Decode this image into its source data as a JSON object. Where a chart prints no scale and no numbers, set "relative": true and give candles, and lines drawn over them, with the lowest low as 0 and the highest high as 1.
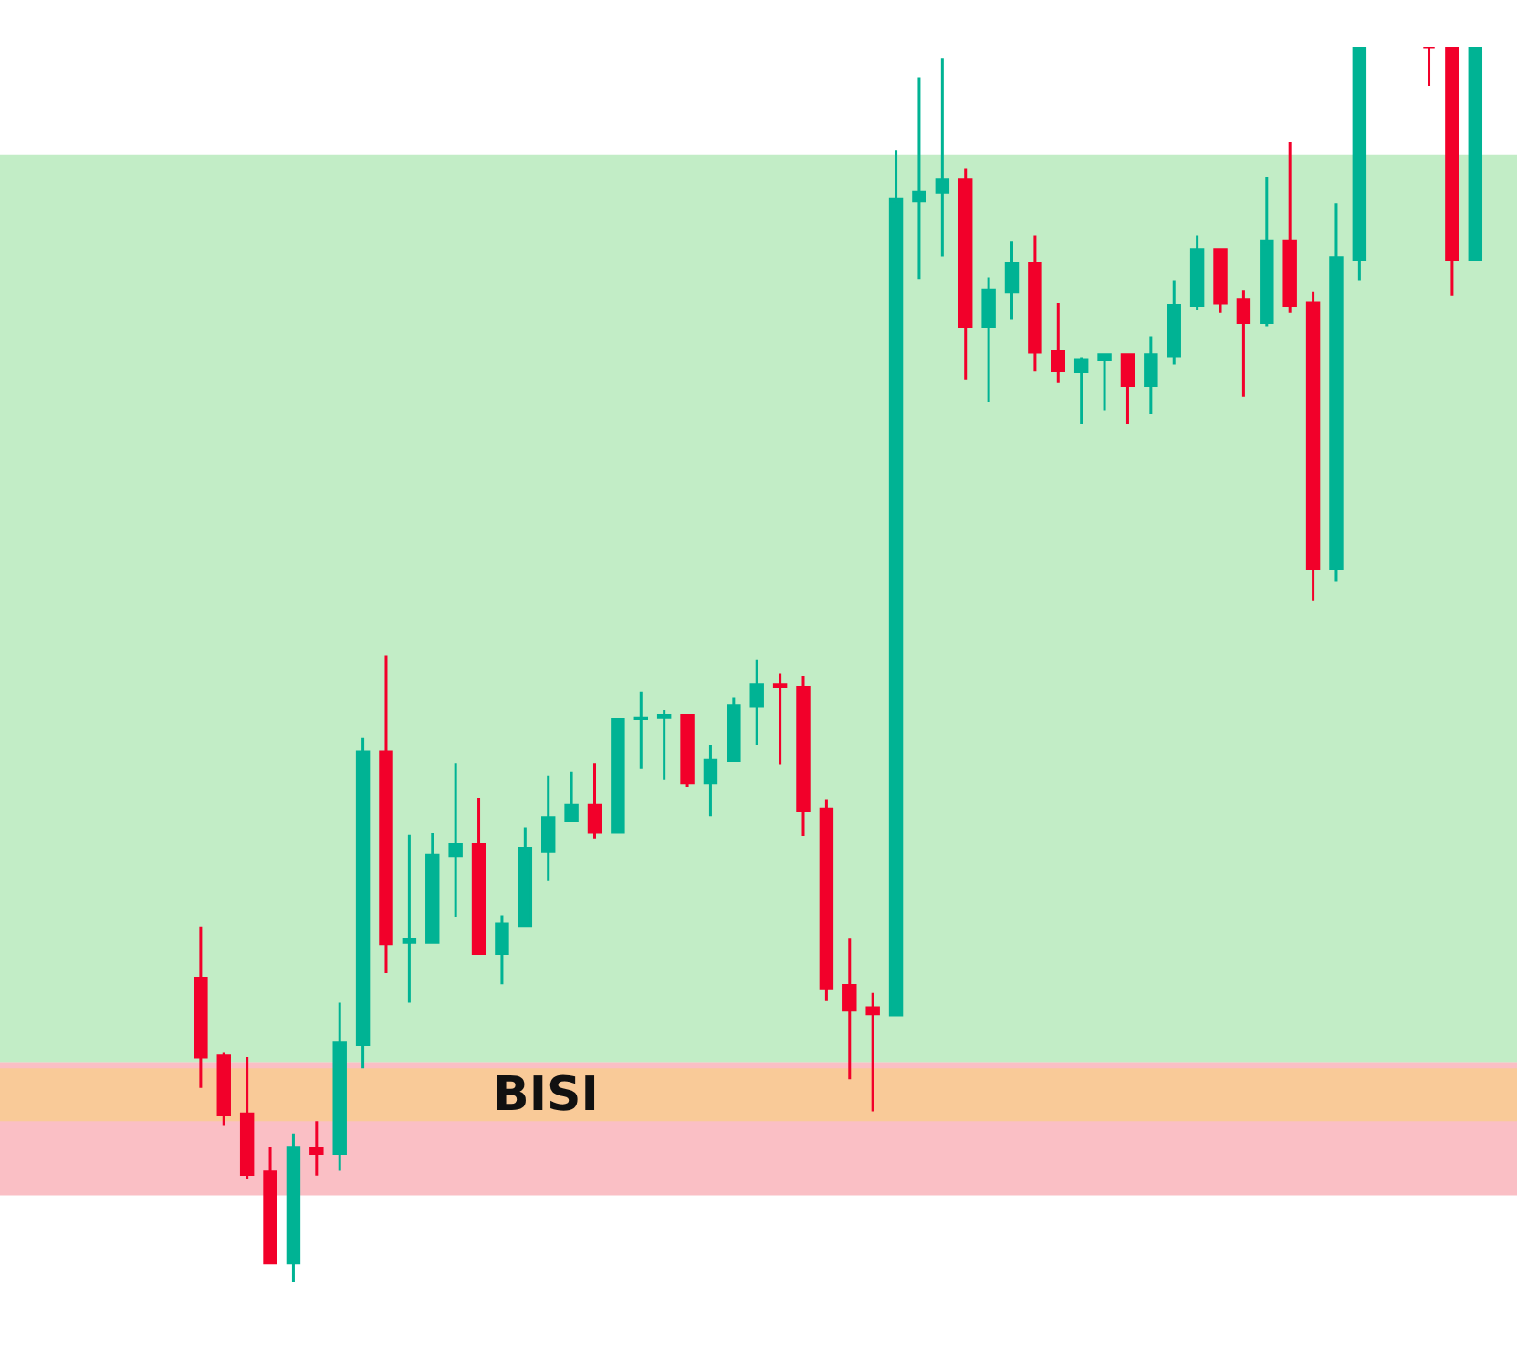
{
  "chart_data": {
    "type": "candlestick",
    "relative": true,
    "categories": [
      null,
      null,
      null,
      null,
      null,
      null,
      null,
      null,
      null,
      null,
      null,
      null,
      null,
      null,
      null,
      null,
      null,
      null,
      null,
      null,
      null,
      null,
      null,
      null,
      null,
      null,
      null,
      null,
      null,
      null,
      null,
      null,
      null,
      null,
      null,
      null,
      null,
      null,
      null,
      null,
      null,
      null,
      null,
      null,
      null,
      null,
      null,
      null,
      null,
      null,
      null,
      null,
      null,
      null,
      null,
      null
    ],
    "ohlc": [
      [
        0.246,
        0.288,
        0.157,
        0.182
      ],
      [
        0.183,
        0.186,
        0.127,
        0.135
      ],
      [
        0.136,
        0.182,
        0.083,
        0.087
      ],
      [
        0.089,
        0.109,
        0.015,
        0.015
      ],
      [
        0.015,
        0.12,
        0,
        0.109
      ],
      [
        0.108,
        0.13,
        0.086,
        0.104
      ],
      [
        0.104,
        0.226,
        0.09,
        0.194
      ],
      [
        0.192,
        0.441,
        0.173,
        0.429
      ],
      [
        0.429,
        0.507,
        0.25,
        0.274
      ],
      [
        0.275,
        0.362,
        0.226,
        0.277
      ],
      [
        0.275,
        0.364,
        0.274,
        0.346
      ],
      [
        0.345,
        0.42,
        0.296,
        0.354
      ],
      [
        0.354,
        0.392,
        0.265,
        0.266
      ],
      [
        0.266,
        0.297,
        0.241,
        0.29
      ],
      [
        0.288,
        0.368,
        0.288,
        0.351
      ],
      [
        0.349,
        0.41,
        0.325,
        0.376
      ],
      [
        0.374,
        0.413,
        0.374,
        0.386
      ],
      [
        0.386,
        0.42,
        0.359,
        0.364
      ],
      [
        0.364,
        0.457,
        0.364,
        0.456
      ],
      [
        0.456,
        0.478,
        0.416,
        0.457
      ],
      [
        0.457,
        0.463,
        0.407,
        0.459
      ],
      [
        0.459,
        0.459,
        0.401,
        0.404
      ],
      [
        0.404,
        0.435,
        0.377,
        0.423
      ],
      [
        0.422,
        0.473,
        0.422,
        0.467
      ],
      [
        0.466,
        0.504,
        0.435,
        0.484
      ],
      [
        0.484,
        0.493,
        0.419,
        0.482
      ],
      [
        0.482,
        0.491,
        0.361,
        0.382
      ],
      [
        0.383,
        0.391,
        0.228,
        0.238
      ],
      [
        0.24,
        0.278,
        0.164,
        0.22
      ],
      [
        0.222,
        0.234,
        0.138,
        0.217
      ],
      [
        0.216,
        0.917,
        0.216,
        0.877
      ],
      [
        0.876,
        0.976,
        0.812,
        0.883
      ],
      [
        0.883,
        0.991,
        0.831,
        0.893
      ],
      [
        0.893,
        0.902,
        0.731,
        0.774
      ],
      [
        0.774,
        0.814,
        0.713,
        0.803
      ],
      [
        0.802,
        0.843,
        0.78,
        0.825
      ],
      [
        0.825,
        0.848,
        0.738,
        0.753
      ],
      [
        0.754,
        0.793,
        0.728,
        0.738
      ],
      [
        0.737,
        0.749,
        0.695,
        0.747
      ],
      [
        0.747,
        0.751,
        0.706,
        0.751
      ],
      [
        0.751,
        0.751,
        0.695,
        0.726
      ],
      [
        0.726,
        0.766,
        0.703,
        0.751
      ],
      [
        0.75,
        0.811,
        0.743,
        0.791
      ],
      [
        0.791,
        0.848,
        0.787,
        0.836
      ],
      [
        0.836,
        0.836,
        0.785,
        0.793
      ],
      [
        0.796,
        0.803,
        0.717,
        0.777
      ],
      [
        0.777,
        0.895,
        0.774,
        0.843
      ],
      [
        0.843,
        0.923,
        0.785,
        0.791
      ],
      [
        0.793,
        0.802,
        0.552,
        0.578
      ],
      [
        0.578,
        0.874,
        0.567,
        0.83
      ],
      [
        0.828,
        1,
        0.811,
        1
      ],
      null,
      null,
      [
        1,
        1,
        0.969,
        1
      ],
      [
        1,
        1,
        0.799,
        0.828
      ],
      [
        0.828,
        1,
        0.828,
        1
      ]
    ],
    "colors": [
      "#f2002a",
      "#f2002a",
      "#f2002a",
      "#f2002a",
      "#00b394",
      "#f2002a",
      "#00b394",
      "#00b394",
      "#f2002a",
      "#00b394",
      "#00b394",
      "#00b394",
      "#f2002a",
      "#00b394",
      "#00b394",
      "#00b394",
      "#00b394",
      "#f2002a",
      "#00b394",
      "#00b394",
      "#00b394",
      "#f2002a",
      "#00b394",
      "#00b394",
      "#00b394",
      "#f2002a",
      "#f2002a",
      "#f2002a",
      "#f2002a",
      "#f2002a",
      "#00b394",
      "#00b394",
      "#00b394",
      "#f2002a",
      "#00b394",
      "#00b394",
      "#f2002a",
      "#f2002a",
      "#00b394",
      "#00b394",
      "#f2002a",
      "#00b394",
      "#00b394",
      "#00b394",
      "#f2002a",
      "#f2002a",
      "#00b394",
      "#f2002a",
      "#f2002a",
      "#00b394",
      "#00b394",
      null,
      null,
      "#f2002a",
      "#f2002a",
      "#00b394"
    ],
    "bands": [
      {
        "axis": "y",
        "from": 0.178,
        "to": 0.913,
        "color": "#85dc8d"
      },
      {
        "axis": "y",
        "from": 0.07,
        "to": 0.178,
        "color": "#f5808c"
      },
      {
        "axis": "y",
        "from": 0.13,
        "to": 0.173,
        "label": "BISI",
        "color": "#f8d56b"
      }
    ]
  }
}
